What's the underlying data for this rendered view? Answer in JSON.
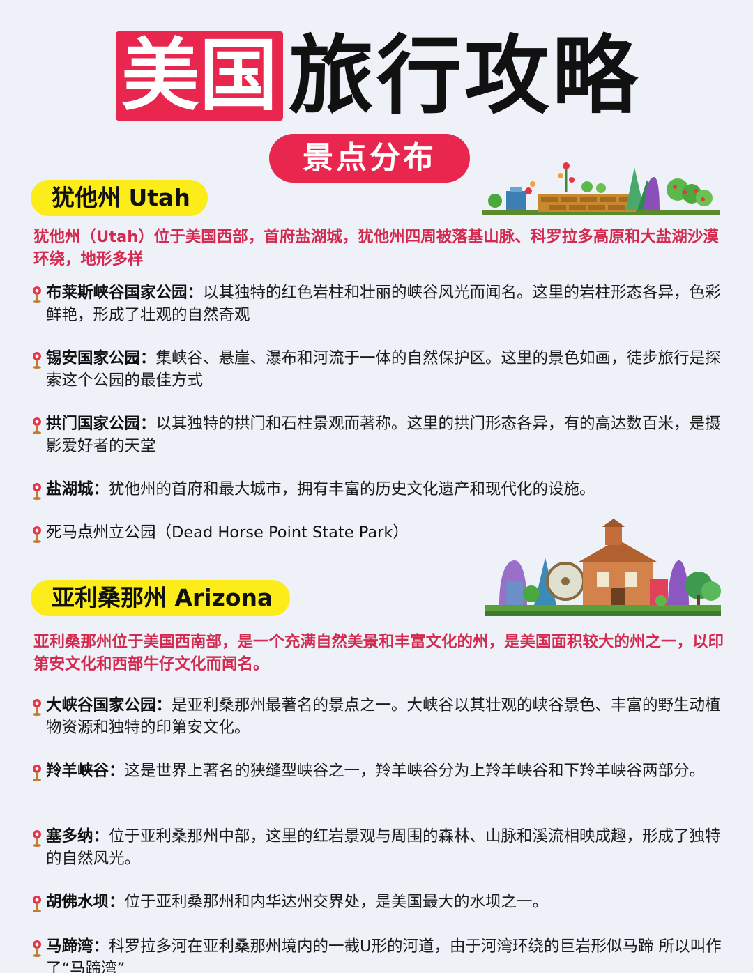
{
  "header": {
    "title_part1": "美国",
    "title_part2": "旅行攻略",
    "subtitle": "景点分布"
  },
  "sections": [
    {
      "tag": "犹他州 Utah",
      "intro": "犹他州（Utah）位于美国西部，首府盐湖城，犹他州四周被落基山脉、科罗拉多高原和大盐湖沙漠环绕，地形多样",
      "items": [
        {
          "name": "布莱斯峡谷国家公园：",
          "desc": "以其独特的红色岩柱和壮丽的峡谷风光而闻名。这里的岩柱形态各异，色彩鲜艳，形成了壮观的自然奇观"
        },
        {
          "name": "锡安国家公园：",
          "desc": "集峡谷、悬崖、瀑布和河流于一体的自然保护区。这里的景色如画，徒步旅行是探索这个公园的最佳方式"
        },
        {
          "name": "拱门国家公园：",
          "desc": "以其独特的拱门和石柱景观而著称。这里的拱门形态各异，有的高达数百米，是摄影爱好者的天堂"
        },
        {
          "name": "盐湖城：",
          "desc": "犹他州的首府和最大城市，拥有丰富的历史文化遗产和现代化的设施。"
        },
        {
          "name": "死马点州立公园（Dead Horse Point State Park）",
          "desc": ""
        }
      ]
    },
    {
      "tag": "亚利桑那州 Arizona",
      "intro": "亚利桑那州位于美国西南部，是一个充满自然美景和丰富文化的州，是美国面积较大的州之一，以印第安文化和西部牛仔文化而闻名。",
      "items": [
        {
          "name": "大峡谷国家公园：",
          "desc": "是亚利桑那州最著名的景点之一。大峡谷以其壮观的峡谷景色、丰富的野生动植物资源和独特的印第安文化。"
        },
        {
          "name": "羚羊峡谷：",
          "desc": "这是世界上著名的狭缝型峡谷之一，羚羊峡谷分为上羚羊峡谷和下羚羊峡谷两部分。"
        },
        {
          "name": "塞多纳：",
          "desc": "位于亚利桑那州中部，这里的红岩景观与周围的森林、山脉和溪流相映成趣，形成了独特的自然风光。"
        },
        {
          "name": "胡佛水坝：",
          "desc": "位于亚利桑那州和内华达州交界处，是美国最大的水坝之一。"
        },
        {
          "name": "马蹄湾：",
          "desc": "科罗拉多河在亚利桑那州境内的一截U形的河道，由于河湾环绕的巨岩形似马蹄 所以叫作了“马蹄湾”"
        }
      ]
    }
  ],
  "colors": {
    "accent_red": "#e8264e",
    "tag_yellow": "#fbec1a",
    "intro_red": "#d42a50",
    "background": "#eef1f8"
  },
  "icons": {
    "bullet": "map-pin-icon"
  }
}
